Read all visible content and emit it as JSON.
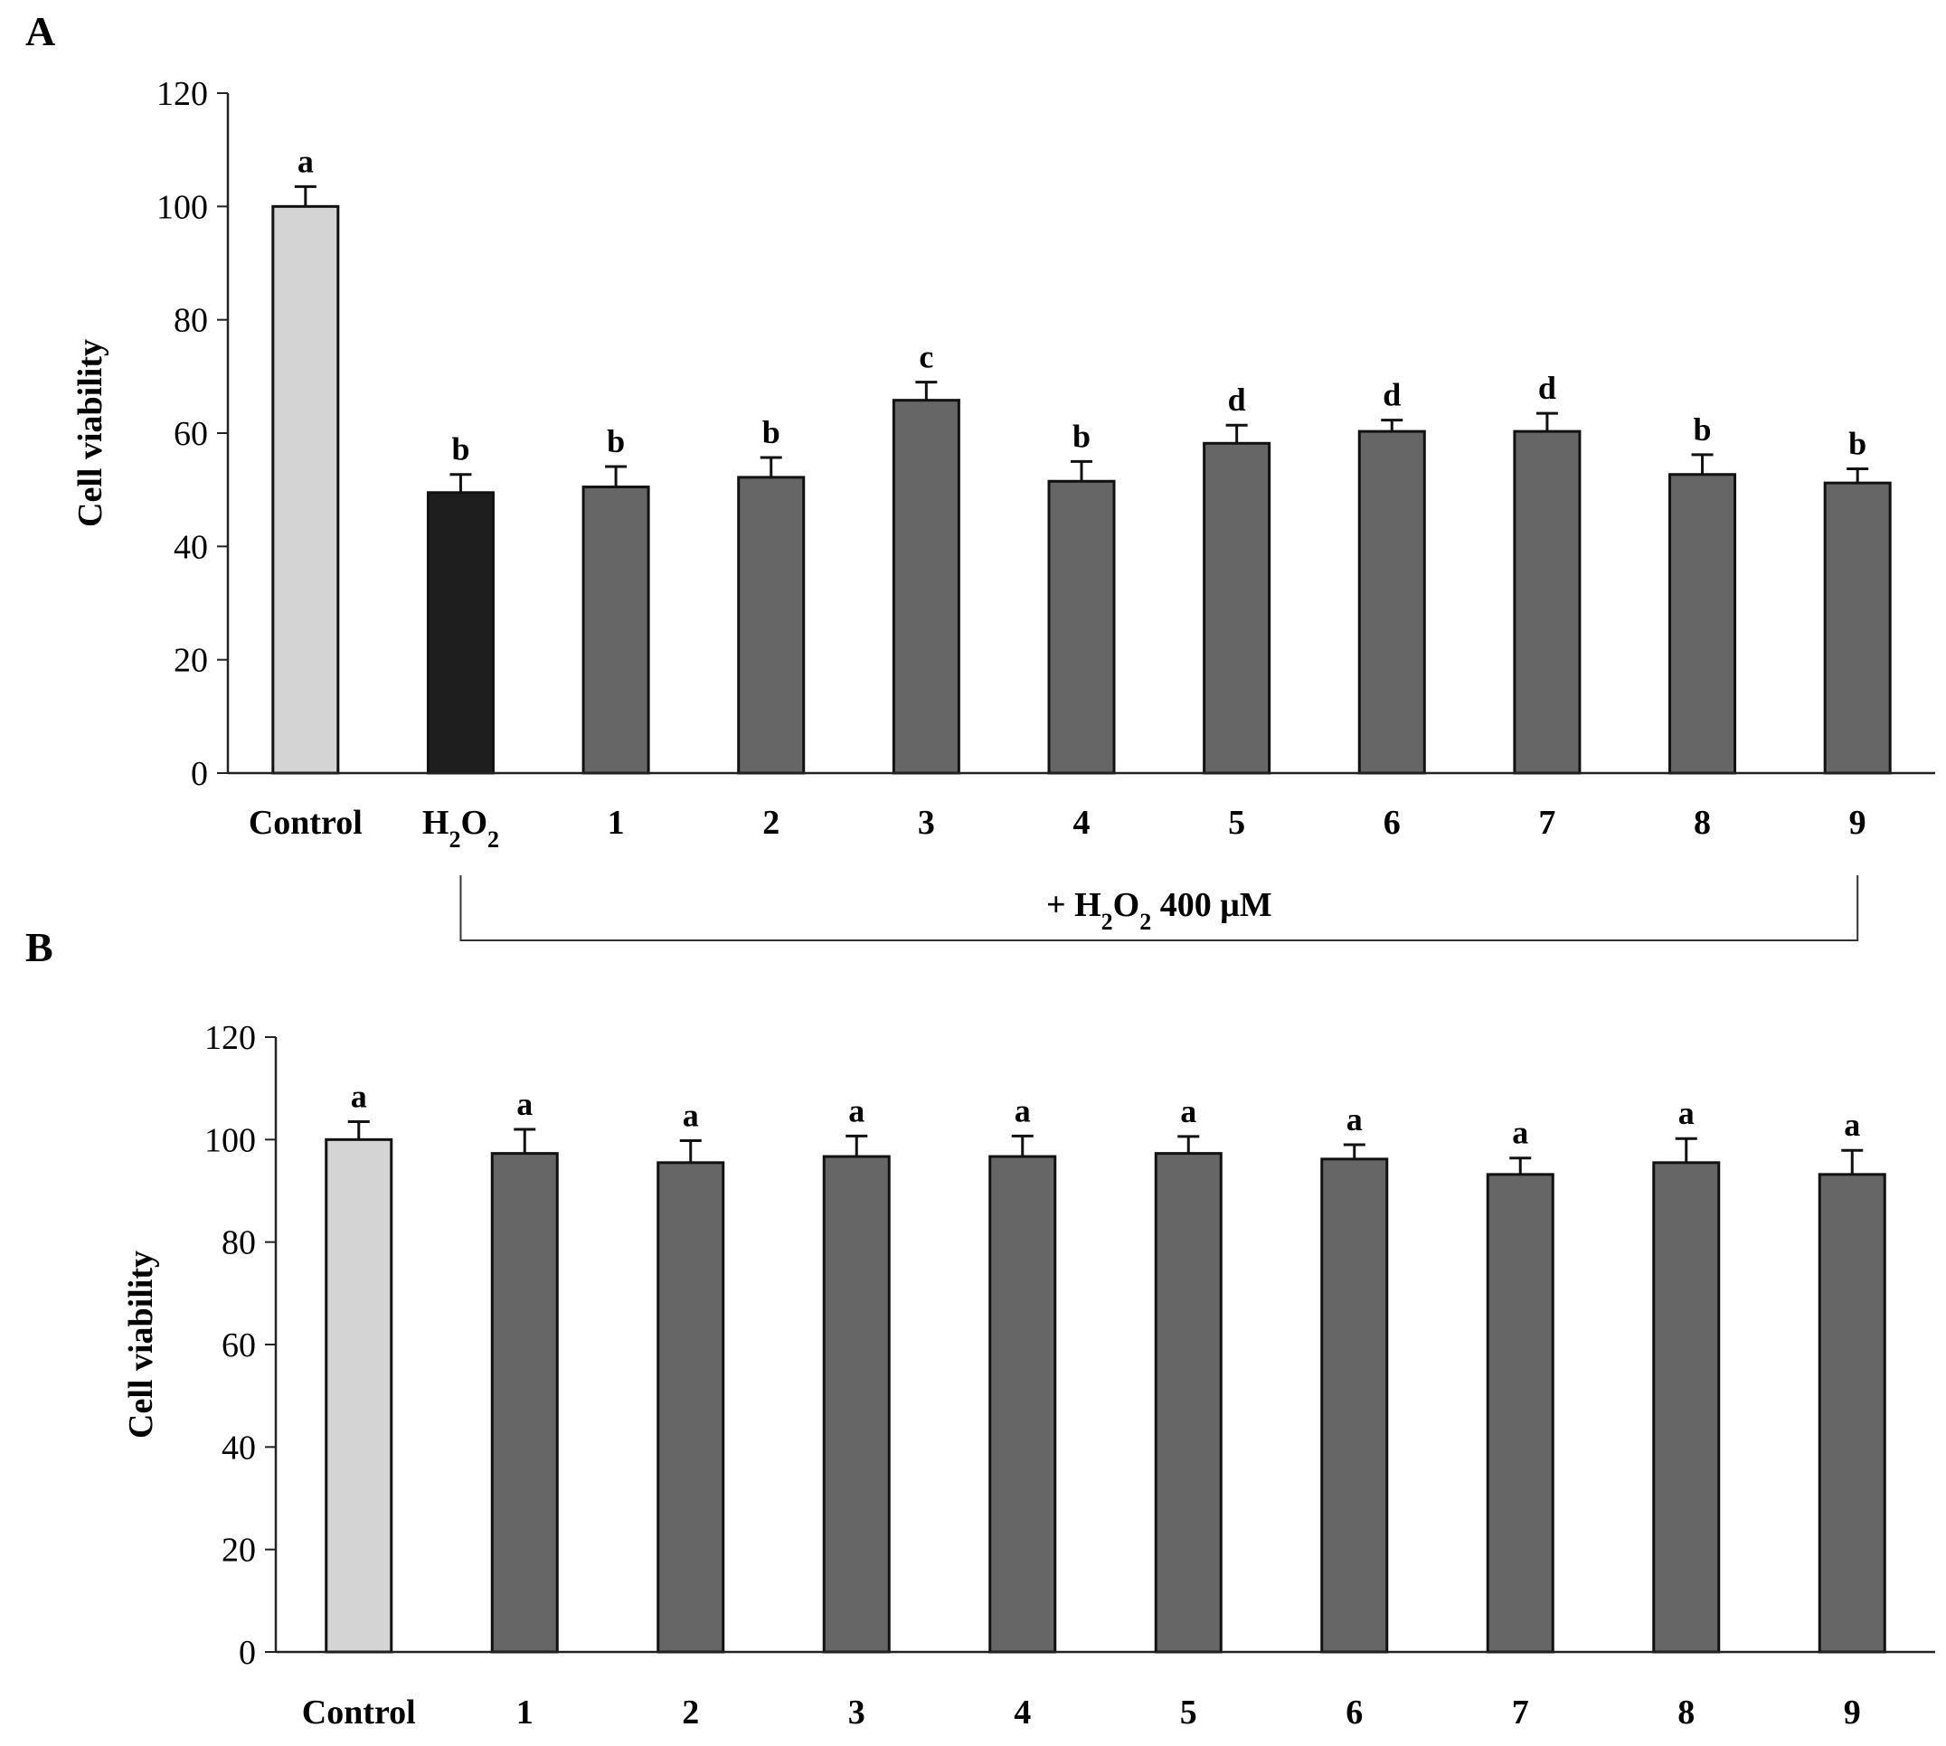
{
  "colors": {
    "control": "#d4d4d4",
    "h2o2": "#1e1e1e",
    "sample": "#666666",
    "axis": "#222222"
  },
  "chart_data": [
    {
      "type": "bar",
      "panel_label": "A",
      "ylabel": "Cell viability",
      "ylim": [
        0,
        120
      ],
      "yticks": [
        0,
        20,
        40,
        60,
        80,
        100,
        120
      ],
      "categories": [
        "Control",
        "H2O2",
        "1",
        "2",
        "3",
        "4",
        "5",
        "6",
        "7",
        "8",
        "9"
      ],
      "values": [
        100,
        49.5,
        50.5,
        52.2,
        65.8,
        51.5,
        58.2,
        60.3,
        60.3,
        52.7,
        51.2
      ],
      "errors": [
        3.5,
        3.2,
        3.6,
        3.5,
        3.2,
        3.5,
        3.2,
        2.0,
        3.2,
        3.5,
        2.5
      ],
      "significance": [
        "a",
        "b",
        "b",
        "b",
        "c",
        "b",
        "d",
        "d",
        "d",
        "b",
        "b"
      ],
      "bar_colors": [
        "control",
        "h2o2",
        "sample",
        "sample",
        "sample",
        "sample",
        "sample",
        "sample",
        "sample",
        "sample",
        "sample"
      ],
      "bracket_label": "+ H2O2 400 μM",
      "bracket_prefix": "+ H",
      "bracket_suffix": " 400 μM"
    },
    {
      "type": "bar",
      "panel_label": "B",
      "ylabel": "Cell viability",
      "ylim": [
        0,
        120
      ],
      "yticks": [
        0,
        20,
        40,
        60,
        80,
        100,
        120
      ],
      "categories": [
        "Control",
        "1",
        "2",
        "3",
        "4",
        "5",
        "6",
        "7",
        "8",
        "9"
      ],
      "values": [
        100,
        97.3,
        95.5,
        96.7,
        96.7,
        97.3,
        96.2,
        93.2,
        95.5,
        93.2
      ],
      "errors": [
        3.5,
        4.7,
        4.3,
        4.0,
        4.0,
        3.3,
        2.8,
        3.2,
        4.7,
        4.7
      ],
      "significance": [
        "a",
        "a",
        "a",
        "a",
        "a",
        "a",
        "a",
        "a",
        "a",
        "a"
      ],
      "bar_colors": [
        "control",
        "sample",
        "sample",
        "sample",
        "sample",
        "sample",
        "sample",
        "sample",
        "sample",
        "sample"
      ]
    }
  ]
}
